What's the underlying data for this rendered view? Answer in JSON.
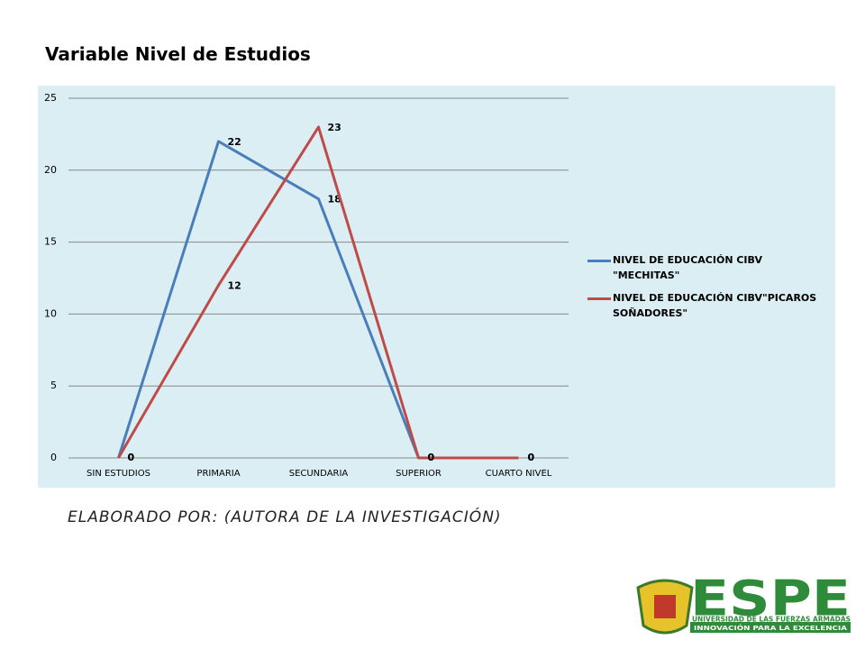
{
  "chart_data": {
    "type": "line",
    "title": "Variable Nivel de Estudios",
    "categories": [
      "SIN ESTUDIOS",
      "PRIMARIA",
      "SECUNDARIA",
      "SUPERIOR",
      "CUARTO NIVEL"
    ],
    "series": [
      {
        "name": "NIVEL DE EDUCACIÓN CIBV \"MECHITAS\"",
        "color": "#4a7ebb",
        "values": [
          0,
          22,
          18,
          0,
          0
        ]
      },
      {
        "name": "NIVEL DE EDUCACIÓN CIBV\"PICAROS SOÑADORES\"",
        "color": "#be4b48",
        "values": [
          0,
          12,
          23,
          0,
          0
        ]
      }
    ],
    "ylim": [
      0,
      25
    ],
    "yticks": [
      0,
      5,
      10,
      15,
      20,
      25
    ],
    "grid": true,
    "legend": "right",
    "data_labels": true
  },
  "footer": "ELABORADO POR: (AUTORA DE LA INVESTIGACIÓN)",
  "logo": {
    "name": "ESPE",
    "line1": "UNIVERSIDAD DE LAS FUERZAS ARMADAS",
    "line2": "INNOVACIÓN PARA LA EXCELENCIA"
  }
}
